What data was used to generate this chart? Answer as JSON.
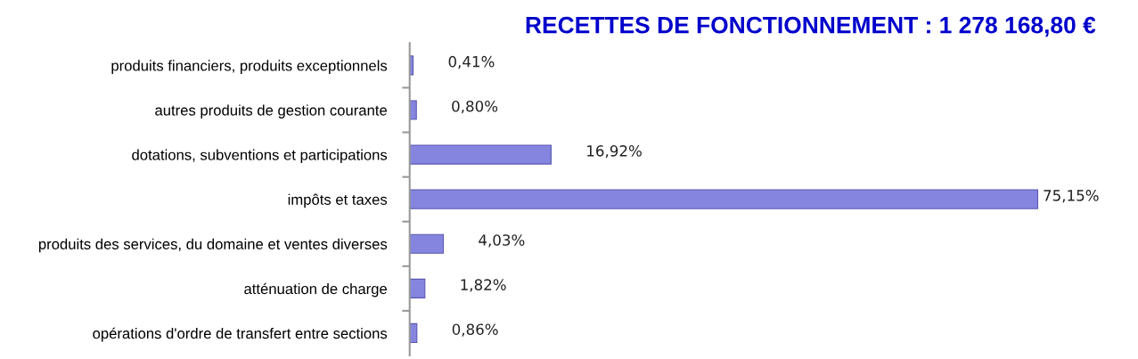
{
  "chart_data": {
    "type": "bar",
    "orientation": "horizontal",
    "title": "RECETTES DE FONCTIONNEMENT : 1 278 168,80 €",
    "categories": [
      "produits financiers, produits exceptionnels",
      "autres produits de gestion courante",
      "dotations, subventions et participations",
      "impôts et taxes",
      "produits des services, du domaine et ventes diverses",
      "atténuation de charge",
      "opérations d'ordre de transfert entre sections"
    ],
    "values": [
      0.41,
      0.8,
      16.92,
      75.15,
      4.03,
      1.82,
      0.86
    ],
    "value_labels": [
      "0,41%",
      "0,80%",
      "16,92%",
      "75,15%",
      "4,03%",
      "1,82%",
      "0,86%"
    ],
    "color": "#8585e0",
    "tick_labels": "y",
    "grid": false,
    "legend": false
  }
}
